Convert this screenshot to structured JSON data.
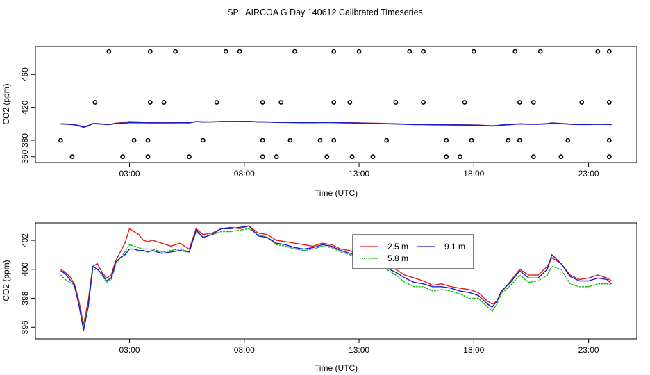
{
  "title": "SPL AIRCOA G  Day 140612  Calibrated Timeseries",
  "chart_data": [
    {
      "type": "scatter+line",
      "title": "",
      "xlabel": "Time (UTC)",
      "ylabel": "CO2 (ppm)",
      "xlim": [
        -1.1,
        25.1
      ],
      "ylim": [
        353,
        494
      ],
      "xticks": [
        3,
        8,
        13,
        18,
        23
      ],
      "xtick_labels": [
        "03:00",
        "08:00",
        "13:00",
        "18:00",
        "23:00"
      ],
      "yticks": [
        360,
        380,
        420,
        460
      ],
      "ytick_labels": [
        "360",
        "380",
        "420",
        "460"
      ],
      "calibration_points": {
        "marker": "open-circle",
        "levels": [
          360,
          380,
          426,
          488
        ],
        "x_360": [
          0.5,
          2.7,
          3.8,
          5.6,
          8.8,
          9.4,
          11.6,
          12.7,
          13.6,
          16.8,
          17.4,
          20.6,
          21.8,
          23.9
        ],
        "x_380": [
          0.0,
          3.2,
          3.8,
          6.2,
          8.8,
          10.0,
          11.3,
          11.9,
          14.2,
          16.8,
          17.9,
          19.5,
          20.0,
          22.1,
          23.9
        ],
        "x_426": [
          1.5,
          3.9,
          4.5,
          6.8,
          8.8,
          9.6,
          11.9,
          12.6,
          14.6,
          15.8,
          17.6,
          20.0,
          20.6,
          22.7,
          23.9
        ],
        "x_488": [
          2.1,
          3.9,
          5.0,
          7.2,
          7.8,
          10.2,
          11.9,
          13.0,
          15.2,
          15.8,
          18.0,
          19.8,
          20.9,
          23.4,
          23.9
        ]
      },
      "series": [
        {
          "name": "2.5 m",
          "color": "#e41a1c",
          "values_ref": "series_bottom.2.5 m"
        },
        {
          "name": "9.1 m",
          "color": "#1a1ad0",
          "values_ref": "series_bottom.9.1 m"
        }
      ]
    },
    {
      "type": "line",
      "title": "",
      "xlabel": "Time (UTC)",
      "ylabel": "CO2 (ppm)",
      "xlim": [
        -1.1,
        25.1
      ],
      "ylim": [
        395.2,
        403.2
      ],
      "xticks": [
        3,
        8,
        13,
        18,
        23
      ],
      "xtick_labels": [
        "03:00",
        "08:00",
        "13:00",
        "18:00",
        "23:00"
      ],
      "yticks": [
        396,
        398,
        400,
        402
      ],
      "ytick_labels": [
        "396",
        "398",
        "400",
        "402"
      ],
      "legend": {
        "placement": "upper-center",
        "entries": [
          "2.5 m",
          "9.1 m",
          "5.8 m"
        ]
      },
      "x": [
        0.0,
        0.2,
        0.4,
        0.6,
        0.8,
        1.0,
        1.2,
        1.4,
        1.6,
        1.8,
        2.0,
        2.2,
        2.4,
        2.6,
        2.8,
        3.0,
        3.2,
        3.4,
        3.6,
        3.8,
        4.0,
        4.4,
        4.8,
        5.2,
        5.6,
        5.9,
        6.2,
        6.6,
        7.0,
        7.4,
        7.8,
        8.2,
        8.6,
        9.0,
        9.4,
        9.8,
        10.2,
        10.6,
        11.0,
        11.4,
        11.8,
        12.2,
        12.6,
        13.0,
        13.4,
        13.8,
        14.2,
        14.6,
        15.0,
        15.4,
        15.8,
        16.2,
        16.6,
        17.0,
        17.4,
        17.8,
        18.2,
        18.6,
        18.8,
        19.0,
        19.2,
        19.6,
        20.0,
        20.4,
        20.8,
        21.2,
        21.4,
        21.8,
        22.2,
        22.6,
        23.0,
        23.4,
        23.8,
        24.0
      ],
      "series": [
        {
          "name": "2.5 m",
          "color": "#e41a1c",
          "values": [
            400.0,
            399.8,
            399.5,
            399.0,
            397.8,
            396.2,
            397.8,
            400.2,
            400.4,
            399.8,
            399.4,
            399.6,
            400.6,
            401.2,
            401.8,
            402.8,
            402.6,
            402.4,
            402.0,
            401.9,
            402.0,
            401.8,
            401.6,
            401.8,
            401.4,
            402.8,
            402.4,
            402.5,
            402.8,
            402.9,
            402.8,
            403.0,
            402.5,
            402.4,
            402.0,
            401.9,
            401.8,
            401.7,
            401.6,
            401.8,
            401.7,
            401.4,
            401.3,
            401.0,
            400.8,
            400.6,
            400.3,
            400.0,
            399.6,
            399.4,
            399.2,
            398.9,
            399.0,
            398.8,
            398.7,
            398.6,
            398.4,
            397.8,
            397.6,
            397.8,
            398.4,
            399.2,
            400.0,
            399.6,
            399.6,
            400.2,
            400.8,
            400.4,
            399.6,
            399.3,
            399.4,
            399.6,
            399.4,
            399.2
          ]
        },
        {
          "name": "5.8 m",
          "color": "#11b811",
          "dashed": true,
          "values": [
            399.6,
            399.3,
            399.1,
            398.8,
            397.6,
            396.0,
            397.4,
            400.0,
            400.0,
            399.6,
            399.1,
            399.3,
            400.3,
            400.8,
            401.2,
            401.7,
            401.6,
            401.5,
            401.4,
            401.4,
            401.4,
            401.2,
            401.3,
            401.4,
            401.2,
            402.6,
            402.2,
            402.4,
            402.6,
            402.6,
            402.7,
            402.8,
            402.4,
            402.2,
            401.7,
            401.6,
            401.4,
            401.3,
            401.4,
            401.6,
            401.5,
            401.2,
            401.0,
            400.7,
            400.5,
            400.3,
            400.0,
            399.6,
            399.1,
            398.8,
            398.8,
            398.5,
            398.6,
            398.5,
            398.3,
            398.0,
            398.0,
            397.4,
            397.1,
            397.6,
            398.3,
            398.9,
            399.6,
            399.1,
            399.2,
            399.6,
            400.2,
            400.0,
            399.0,
            398.8,
            398.8,
            399.0,
            399.0,
            398.9
          ]
        },
        {
          "name": "9.1 m",
          "color": "#1a1ad0",
          "values": [
            399.9,
            399.7,
            399.3,
            398.9,
            397.5,
            395.8,
            397.4,
            400.2,
            400.0,
            399.7,
            399.2,
            399.4,
            400.5,
            400.8,
            401.0,
            401.4,
            401.4,
            401.3,
            401.3,
            401.2,
            401.3,
            401.1,
            401.2,
            401.3,
            401.2,
            402.7,
            402.2,
            402.4,
            402.8,
            402.8,
            402.9,
            403.0,
            402.3,
            402.2,
            401.8,
            401.7,
            401.5,
            401.4,
            401.5,
            401.7,
            401.6,
            401.3,
            401.1,
            400.9,
            400.6,
            400.4,
            400.1,
            399.8,
            399.4,
            399.1,
            399.0,
            398.8,
            398.8,
            398.7,
            398.5,
            398.4,
            398.2,
            397.6,
            397.4,
            397.8,
            398.5,
            399.1,
            399.9,
            399.4,
            399.4,
            400.0,
            401.0,
            400.4,
            399.5,
            399.2,
            399.2,
            399.4,
            399.3,
            399.0
          ]
        }
      ]
    }
  ]
}
